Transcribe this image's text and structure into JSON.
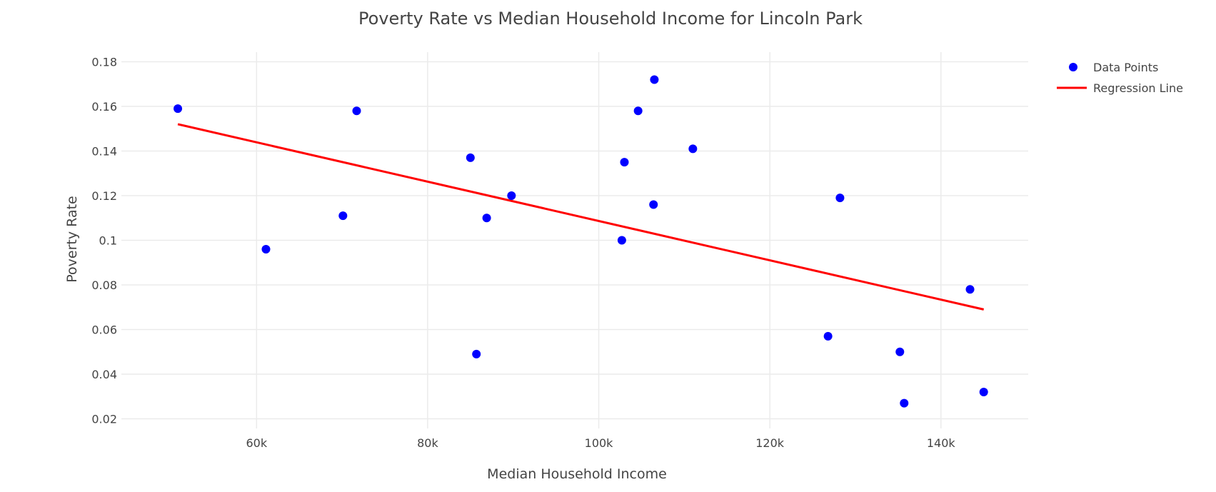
{
  "chart_data": {
    "type": "scatter",
    "title": "Poverty Rate vs Median Household Income for Lincoln Park",
    "xlabel": "Median Household Income",
    "ylabel": "Poverty Rate",
    "xlim": [
      44200,
      150200
    ],
    "ylim": [
      0.0157,
      0.1843
    ],
    "x_ticks": [
      60000,
      80000,
      100000,
      120000,
      140000
    ],
    "x_tick_labels": [
      "60k",
      "80k",
      "100k",
      "120k",
      "140k"
    ],
    "y_ticks": [
      0.02,
      0.04,
      0.06,
      0.08,
      0.1,
      0.12,
      0.14,
      0.16,
      0.18
    ],
    "y_tick_labels": [
      "0.02",
      "0.04",
      "0.06",
      "0.08",
      "0.1",
      "0.12",
      "0.14",
      "0.16",
      "0.18"
    ],
    "grid": true,
    "legend_position": "top-right",
    "series": [
      {
        "name": "Data Points",
        "mode": "markers",
        "color": "#0000ff",
        "x": [
          50800,
          61100,
          70100,
          71700,
          85000,
          85700,
          86900,
          89800,
          102700,
          103000,
          104600,
          106400,
          106500,
          111000,
          126800,
          128200,
          135200,
          135700,
          143400,
          145000
        ],
        "y": [
          0.159,
          0.096,
          0.111,
          0.158,
          0.137,
          0.049,
          0.11,
          0.12,
          0.1,
          0.135,
          0.158,
          0.116,
          0.172,
          0.141,
          0.057,
          0.119,
          0.05,
          0.027,
          0.078,
          0.032
        ]
      },
      {
        "name": "Regression Line",
        "mode": "lines",
        "color": "#ff0000",
        "x": [
          50800,
          145000
        ],
        "y": [
          0.152,
          0.069
        ]
      }
    ]
  }
}
